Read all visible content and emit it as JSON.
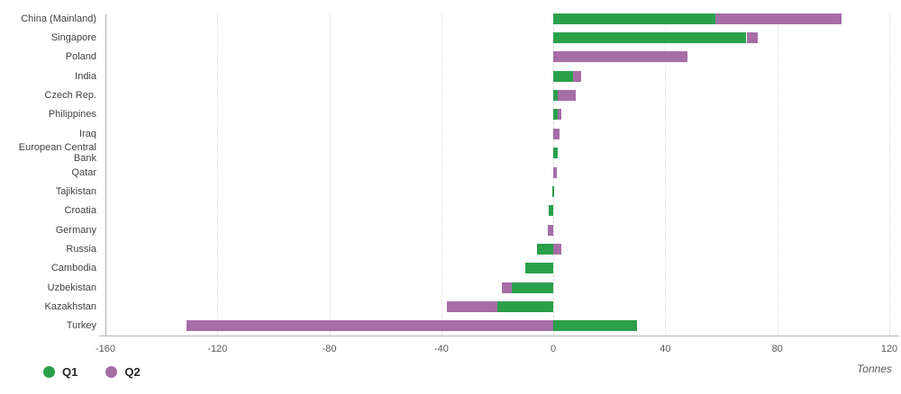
{
  "chart_data": {
    "type": "bar",
    "orientation": "horizontal",
    "stacked": true,
    "title": "",
    "xlabel": "",
    "xlabel_unit": "Tonnes",
    "x_ticks": [
      -160,
      -120,
      -80,
      -40,
      0,
      40,
      80,
      120
    ],
    "xlim": [
      -160,
      120
    ],
    "grid": "vertical-dotted",
    "legend": [
      "Q1",
      "Q2"
    ],
    "legend_position": "bottom-left",
    "categories": [
      "China (Mainland)",
      "Singapore",
      "Poland",
      "India",
      "Czech Rep.",
      "Philippines",
      "Iraq",
      "European Central Bank",
      "Qatar",
      "Tajikistan",
      "Croatia",
      "Germany",
      "Russia",
      "Cambodia",
      "Uzbekistan",
      "Kazakhstan",
      "Turkey"
    ],
    "series": [
      {
        "name": "Q1",
        "color": "#2aa04b",
        "values": [
          58,
          69,
          0,
          7,
          1.5,
          1.7,
          0,
          1.7,
          0,
          -0.4,
          -1.8,
          0,
          -6,
          -10,
          -15,
          -20,
          30
        ]
      },
      {
        "name": "Q2",
        "color": "#a66da7",
        "values": [
          45,
          4,
          48,
          3,
          6.4,
          1.3,
          2.3,
          0,
          1.4,
          0,
          0,
          -2.1,
          3,
          0,
          -3.5,
          -18,
          -131
        ]
      }
    ],
    "colors": {
      "q1_green": "#2aa04b",
      "q2_purple": "#a66da7",
      "gridline": "#d9d9d9",
      "axis_line": "#b7b7b7",
      "tick_text": "#595959",
      "category_text": "#3f3f3f",
      "legend_text": "#262626"
    }
  }
}
